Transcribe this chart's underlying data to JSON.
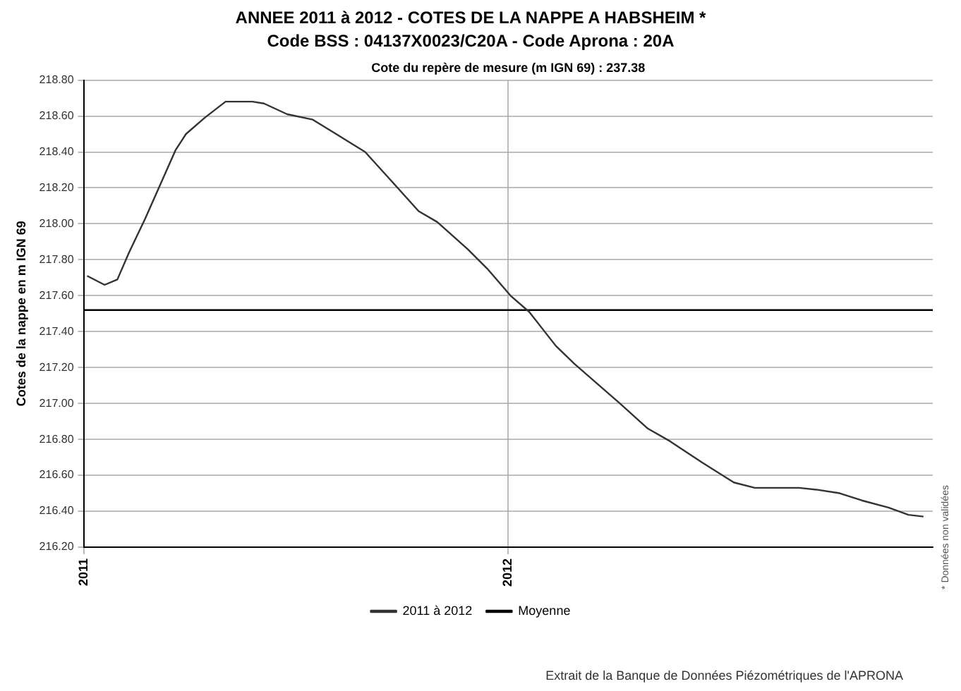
{
  "chart_data": {
    "type": "line",
    "title": "ANNEE 2011 à 2012 - COTES DE LA NAPPE A HABSHEIM *",
    "subtitle": "Code BSS : 04137X0023/C20A - Code Aprona : 20A",
    "ylabel": "Cotes de la nappe en m IGN 69",
    "annotations": [
      "Cote du repère de mesure (m IGN 69) : 237.38",
      "* Données non validées",
      "Extrait de la Banque de Données Piézométriques de l'APRONA"
    ],
    "series": [
      {
        "name": "2011 à 2012",
        "color": "#333333",
        "x": [
          "2011-01-04",
          "2011-01-19",
          "2011-01-30",
          "2011-02-09",
          "2011-02-23",
          "2011-03-21",
          "2011-03-30",
          "2011-04-15",
          "2011-05-03",
          "2011-05-26",
          "2011-06-05",
          "2011-06-25",
          "2011-07-17",
          "2011-08-06",
          "2011-08-31",
          "2011-09-21",
          "2011-10-16",
          "2011-11-01",
          "2011-11-27",
          "2011-12-14",
          "2012-01-03",
          "2012-01-19",
          "2012-02-11",
          "2012-02-27",
          "2012-04-06",
          "2012-04-30",
          "2012-05-19",
          "2012-06-16",
          "2012-07-13",
          "2012-07-31",
          "2012-08-21",
          "2012-09-07",
          "2012-09-22",
          "2012-10-12",
          "2012-10-31",
          "2012-11-23",
          "2012-12-10",
          "2012-12-23"
        ],
        "values": [
          217.71,
          217.66,
          217.69,
          217.84,
          218.03,
          218.41,
          218.5,
          218.59,
          218.68,
          218.68,
          218.67,
          218.61,
          218.58,
          218.5,
          218.4,
          218.25,
          218.07,
          218.01,
          217.86,
          217.75,
          217.6,
          217.51,
          217.32,
          217.22,
          217.0,
          216.86,
          216.79,
          216.67,
          216.56,
          216.53,
          216.53,
          216.53,
          216.52,
          216.5,
          216.46,
          216.42,
          216.38,
          216.37
        ]
      },
      {
        "name": "Moyenne",
        "color": "#000000",
        "x": [
          "2011-01-01",
          "2012-12-31"
        ],
        "values": [
          217.52,
          217.52
        ]
      }
    ],
    "xlim": [
      "2011-01-01",
      "2012-12-31"
    ],
    "xticks": [
      "2011",
      "2012"
    ],
    "ylim": [
      216.2,
      218.8
    ],
    "yticks": [
      {
        "value": 216.2,
        "label": "216.20"
      },
      {
        "value": 216.4,
        "label": "216.40"
      },
      {
        "value": 216.6,
        "label": "216.60"
      },
      {
        "value": 216.8,
        "label": "216.80"
      },
      {
        "value": 217.0,
        "label": "217.00"
      },
      {
        "value": 217.2,
        "label": "217.20"
      },
      {
        "value": 217.4,
        "label": "217.40"
      },
      {
        "value": 217.6,
        "label": "217.60"
      },
      {
        "value": 217.8,
        "label": "217.80"
      },
      {
        "value": 218.0,
        "label": "218.00"
      },
      {
        "value": 218.2,
        "label": "218.20"
      },
      {
        "value": 218.4,
        "label": "218.40"
      },
      {
        "value": 218.6,
        "label": "218.60"
      },
      {
        "value": 218.8,
        "label": "218.80"
      }
    ],
    "grid": true,
    "legend": "bottom",
    "marker": "none",
    "line_style": "solid"
  }
}
